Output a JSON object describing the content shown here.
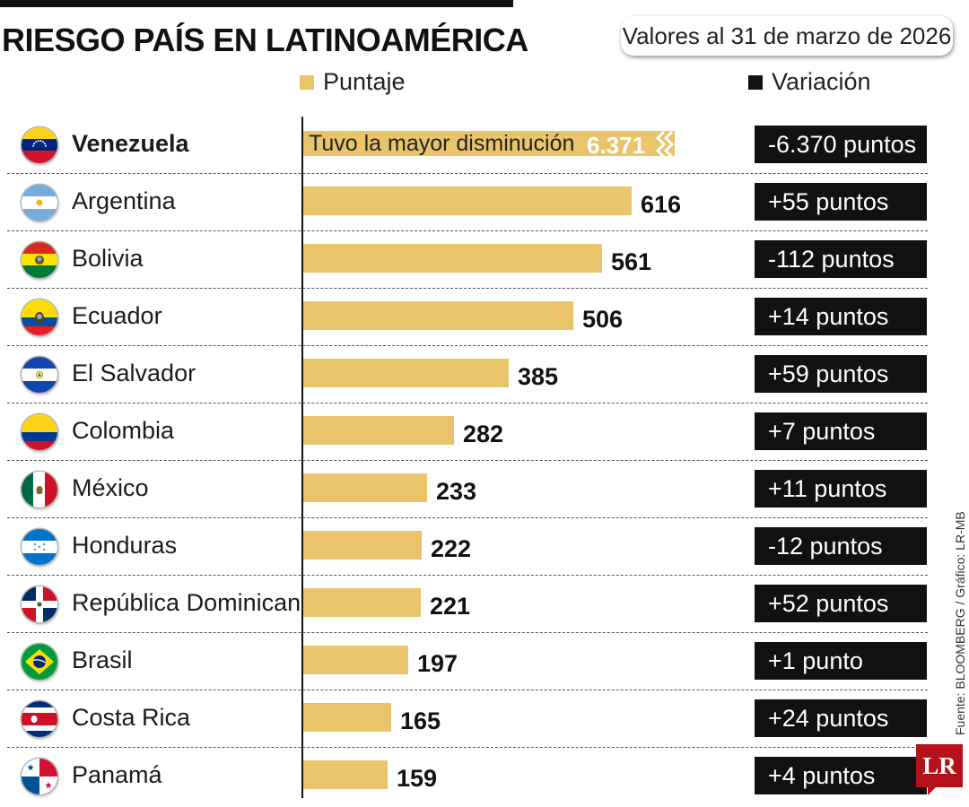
{
  "header": {
    "title": "RIESGO PAÍS EN LATINOAMÉRICA",
    "date_note": "Valores al 31 de marzo de 2026"
  },
  "legend": {
    "score_label": "Puntaje",
    "change_label": "Variación"
  },
  "colors": {
    "bar": "#e9c46a",
    "accent_dark": "#111111",
    "logo": "#b5121b"
  },
  "chart_data": {
    "type": "bar",
    "orientation": "horizontal",
    "title": "RIESGO PAÍS EN LATINOAMÉRICA",
    "subtitle": "Valores al 31 de marzo de 2026",
    "series": [
      {
        "name": "Puntaje",
        "values": [
          6371,
          616,
          561,
          506,
          385,
          282,
          233,
          222,
          221,
          197,
          165,
          159
        ]
      },
      {
        "name": "Variación",
        "labels": [
          "-6.370 puntos",
          "+55 puntos",
          "-112 puntos",
          "+14 puntos",
          "+59 puntos",
          "+7 puntos",
          "+11 puntos",
          "-12 puntos",
          "+52 puntos",
          "+1 punto",
          "+24 puntos",
          "+4 puntos"
        ]
      }
    ],
    "categories": [
      "Venezuela",
      "Argentina",
      "Bolivia",
      "Ecuador",
      "El Salvador",
      "Colombia",
      "México",
      "Honduras",
      "República Dominicana",
      "Brasil",
      "Costa Rica",
      "Panamá"
    ],
    "truncated_axis_max": 640,
    "rows": [
      {
        "country": "Venezuela",
        "flag_icon": "venezuela-flag-icon",
        "value": 6371,
        "value_label": "6.371",
        "change": "-6.370 puntos",
        "note": "Tuvo la mayor disminución",
        "broken_bar": true
      },
      {
        "country": "Argentina",
        "flag_icon": "argentina-flag-icon",
        "value": 616,
        "value_label": "616",
        "change": "+55 puntos"
      },
      {
        "country": "Bolivia",
        "flag_icon": "bolivia-flag-icon",
        "value": 561,
        "value_label": "561",
        "change": "-112 puntos"
      },
      {
        "country": "Ecuador",
        "flag_icon": "ecuador-flag-icon",
        "value": 506,
        "value_label": "506",
        "change": "+14 puntos"
      },
      {
        "country": "El Salvador",
        "flag_icon": "el-salvador-flag-icon",
        "value": 385,
        "value_label": "385",
        "change": "+59 puntos"
      },
      {
        "country": "Colombia",
        "flag_icon": "colombia-flag-icon",
        "value": 282,
        "value_label": "282",
        "change": "+7 puntos"
      },
      {
        "country": "México",
        "flag_icon": "mexico-flag-icon",
        "value": 233,
        "value_label": "233",
        "change": "+11 puntos"
      },
      {
        "country": "Honduras",
        "flag_icon": "honduras-flag-icon",
        "value": 222,
        "value_label": "222",
        "change": "-12 puntos"
      },
      {
        "country": "República Dominicana",
        "flag_icon": "dominican-republic-flag-icon",
        "value": 221,
        "value_label": "221",
        "change": "+52 puntos"
      },
      {
        "country": "Brasil",
        "flag_icon": "brazil-flag-icon",
        "value": 197,
        "value_label": "197",
        "change": "+1 punto"
      },
      {
        "country": "Costa Rica",
        "flag_icon": "costa-rica-flag-icon",
        "value": 165,
        "value_label": "165",
        "change": "+24 puntos"
      },
      {
        "country": "Panamá",
        "flag_icon": "panama-flag-icon",
        "value": 159,
        "value_label": "159",
        "change": "+4 puntos"
      }
    ]
  },
  "footer": {
    "source": "Fuente: BLOOMBERG / Gráfico: LR-MB",
    "logo_text": "LR"
  }
}
